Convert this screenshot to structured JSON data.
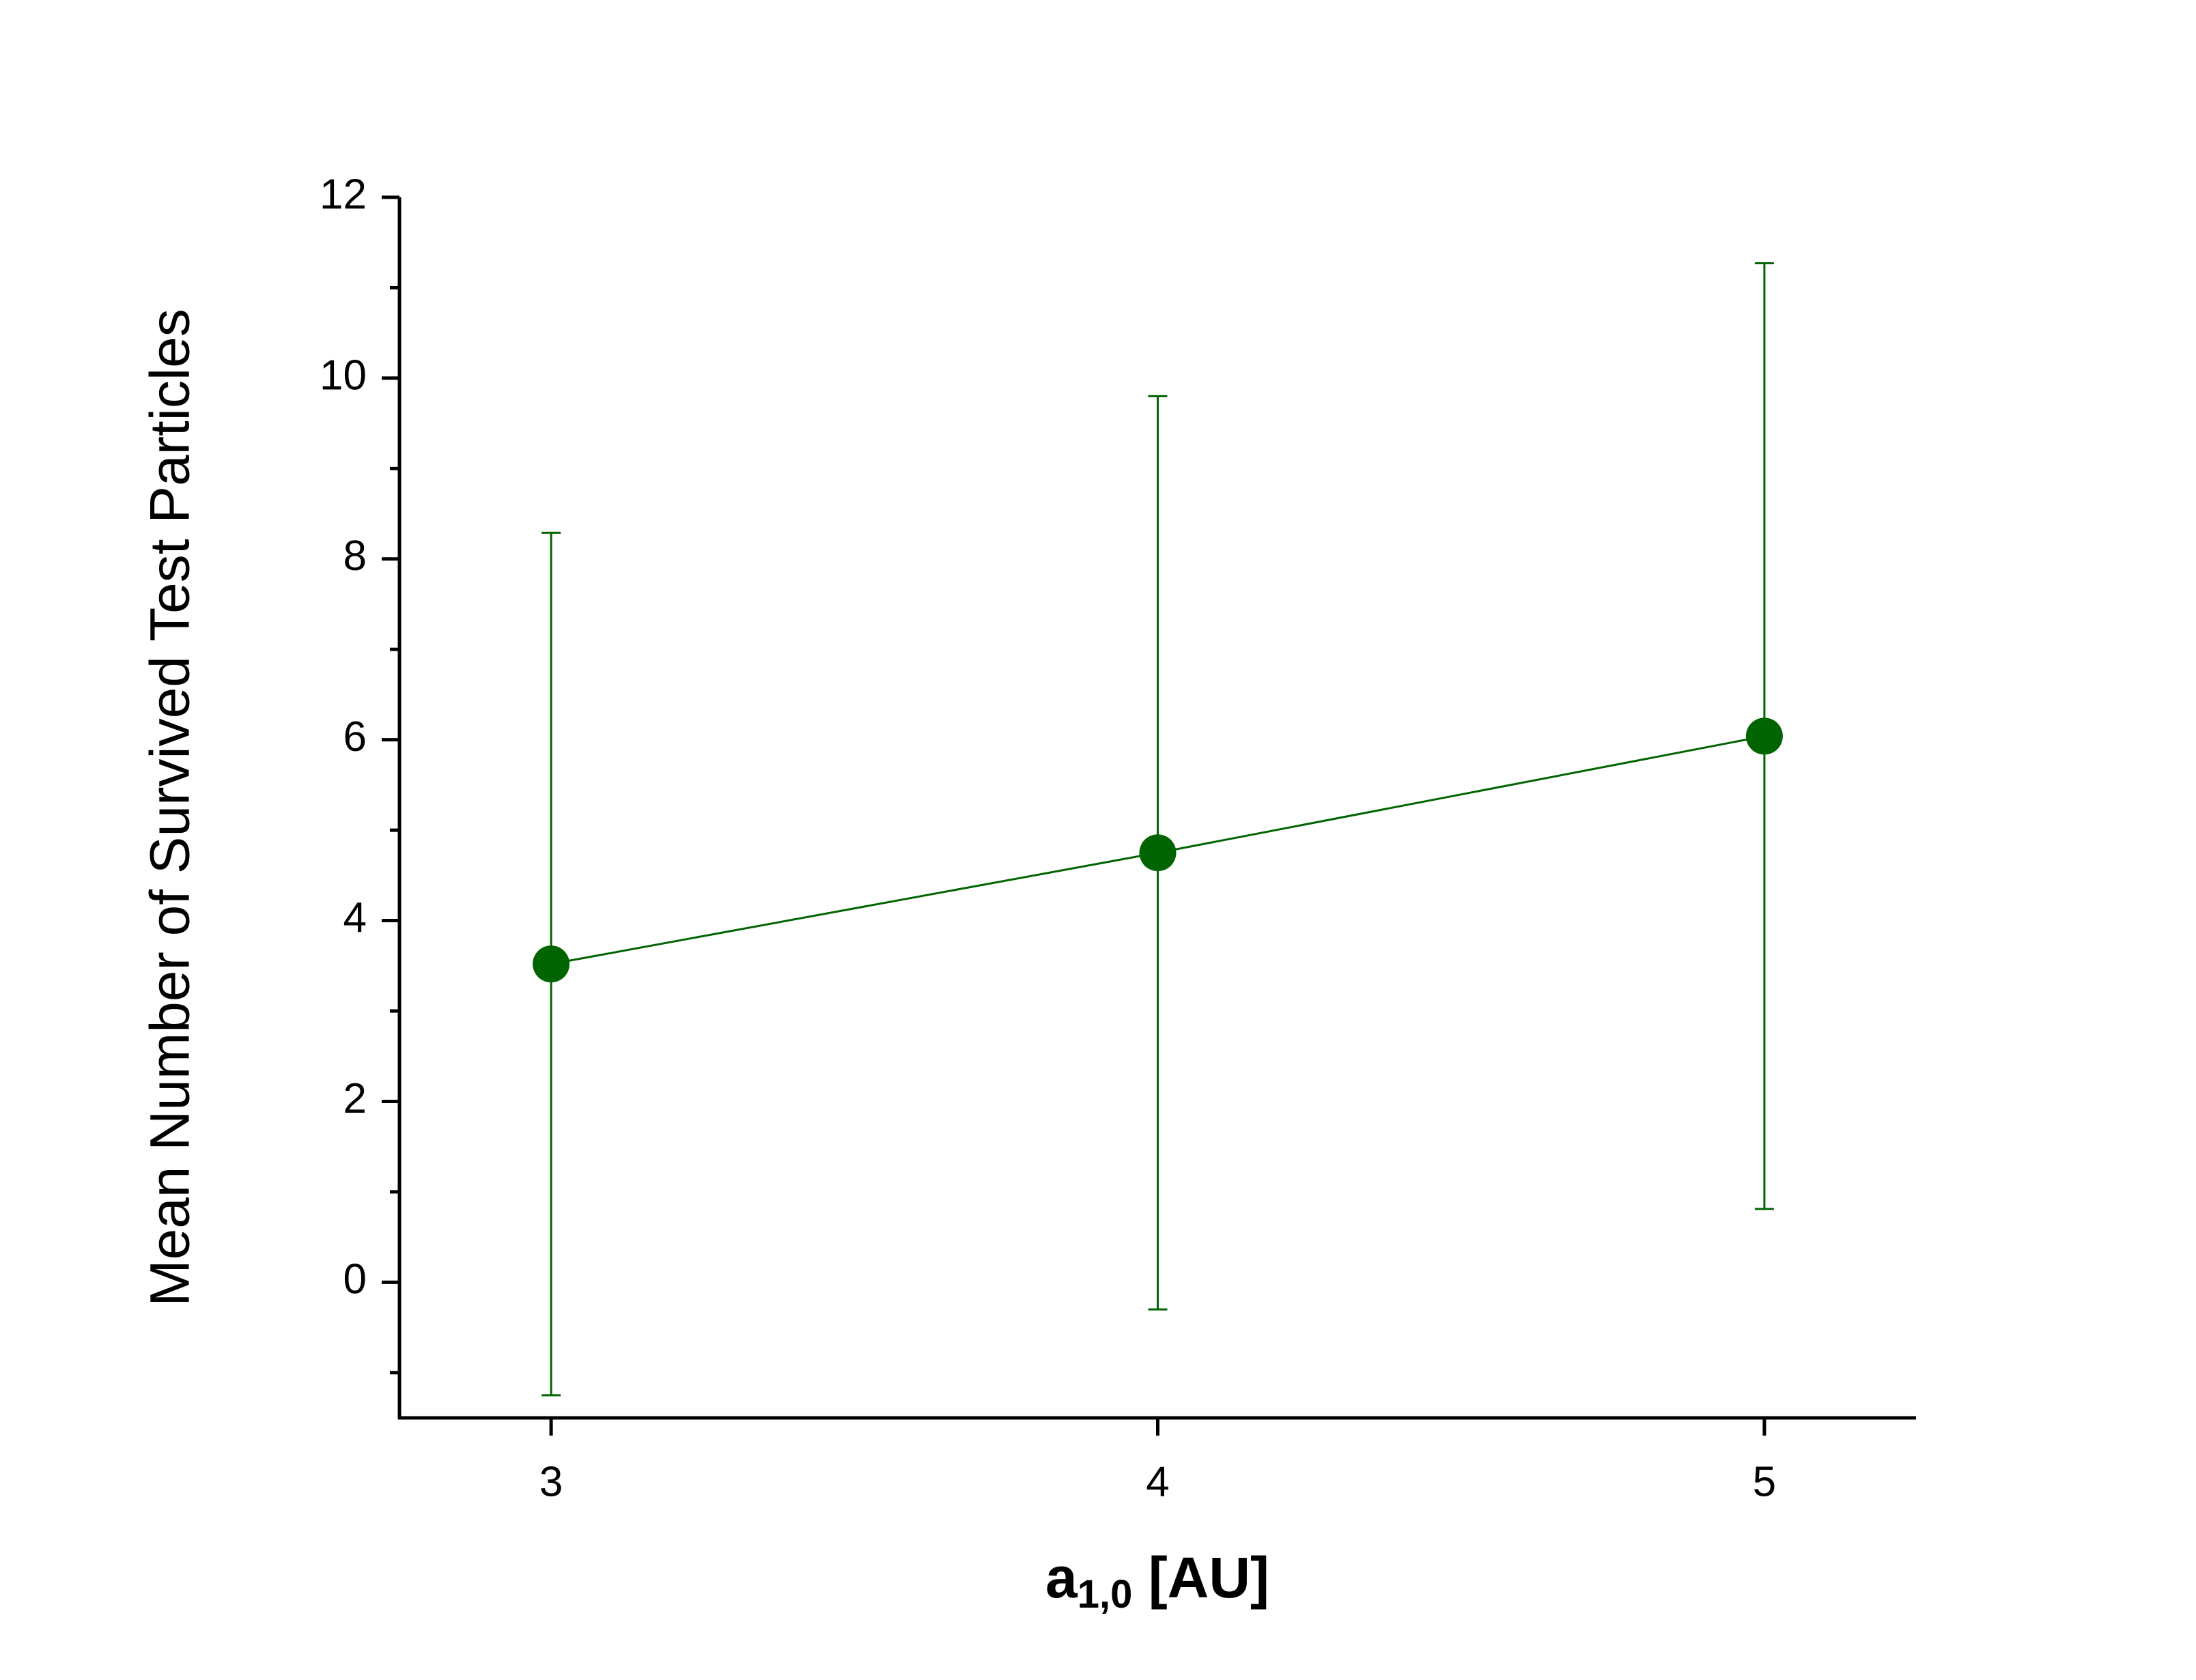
{
  "chart_data": {
    "type": "line",
    "x_label": {
      "base": "a",
      "subscript": "1,0",
      "rest": " [AU]"
    },
    "y_label": "Mean Number of Survived Test Particles",
    "x": [
      3,
      4,
      5
    ],
    "series": [
      {
        "color": "#006400",
        "values": [
          3.52,
          4.75,
          6.04
        ],
        "errors": [
          4.77,
          5.05,
          5.23
        ]
      }
    ],
    "xlim": [
      2.75,
      5.25
    ],
    "xticks": [
      3,
      4,
      5
    ],
    "ylim": [
      -1.5,
      12
    ],
    "yticks": [
      0,
      2,
      4,
      6,
      8,
      10,
      12
    ],
    "yticks_minor": [
      -1,
      1,
      3,
      5,
      7,
      9,
      11
    ],
    "grid": false
  }
}
